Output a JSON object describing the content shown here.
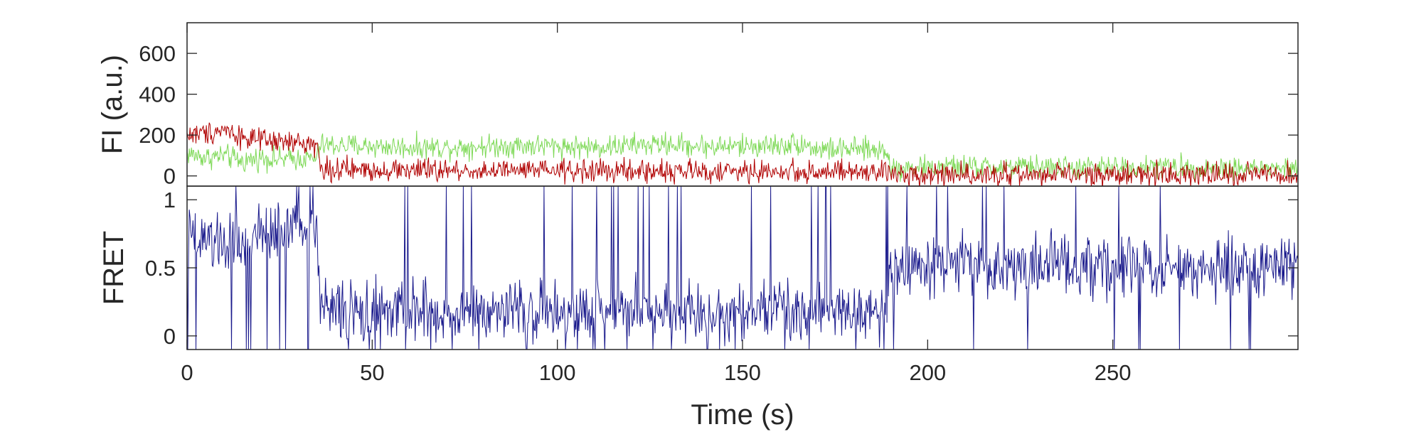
{
  "chart_data": [
    {
      "type": "line",
      "panel": "top",
      "ylabel": "FI (a.u.)",
      "xlabel": "",
      "xlim": [
        0,
        300
      ],
      "ylim": [
        -50,
        750
      ],
      "yticks": [
        0,
        200,
        400,
        600
      ],
      "grid": false,
      "series": [
        {
          "color": "#7ed957",
          "x": [
            0,
            5,
            10,
            15,
            20,
            25,
            30,
            35,
            36,
            40,
            50,
            60,
            70,
            80,
            90,
            100,
            110,
            120,
            130,
            140,
            150,
            160,
            166,
            170,
            180,
            189,
            190,
            200,
            210,
            220,
            230,
            240,
            250,
            260,
            270,
            280,
            290,
            300
          ],
          "values": [
            110,
            90,
            100,
            70,
            90,
            80,
            85,
            85,
            150,
            150,
            145,
            140,
            140,
            145,
            150,
            145,
            140,
            150,
            155,
            145,
            145,
            150,
            160,
            130,
            130,
            125,
            40,
            40,
            45,
            40,
            45,
            40,
            40,
            45,
            40,
            40,
            35,
            35
          ]
        },
        {
          "color": "#b00000",
          "x": [
            0,
            5,
            10,
            15,
            20,
            25,
            30,
            35,
            36,
            40,
            50,
            60,
            70,
            80,
            90,
            100,
            110,
            120,
            130,
            140,
            150,
            160,
            170,
            180,
            189,
            190,
            200,
            210,
            220,
            230,
            240,
            250,
            260,
            270,
            280,
            290,
            300
          ],
          "values": [
            200,
            210,
            230,
            190,
            170,
            165,
            160,
            160,
            35,
            30,
            30,
            30,
            25,
            25,
            25,
            25,
            25,
            20,
            25,
            20,
            20,
            20,
            20,
            15,
            15,
            10,
            10,
            10,
            5,
            5,
            5,
            5,
            10,
            10,
            5,
            5,
            0
          ]
        }
      ]
    },
    {
      "type": "line",
      "panel": "bottom",
      "ylabel": "FRET",
      "xlabel": "Time (s)",
      "xlim": [
        0,
        300
      ],
      "ylim": [
        -0.1,
        1.1
      ],
      "yticks": [
        0,
        0.5,
        1
      ],
      "xticks": [
        0,
        50,
        100,
        150,
        200,
        250
      ],
      "grid": false,
      "series": [
        {
          "color": "#1a1a8c",
          "x": [
            0,
            5,
            10,
            15,
            20,
            25,
            30,
            35,
            36,
            40,
            50,
            60,
            70,
            80,
            90,
            100,
            110,
            120,
            130,
            140,
            150,
            160,
            170,
            180,
            189,
            190,
            200,
            210,
            220,
            230,
            240,
            250,
            260,
            270,
            280,
            290,
            300
          ],
          "values": [
            0.7,
            0.7,
            0.68,
            0.65,
            0.75,
            0.78,
            0.8,
            0.8,
            0.2,
            0.2,
            0.15,
            0.18,
            0.15,
            0.2,
            0.2,
            0.15,
            0.18,
            0.2,
            0.2,
            0.18,
            0.2,
            0.18,
            0.2,
            0.2,
            0.15,
            0.5,
            0.5,
            0.55,
            0.5,
            0.5,
            0.52,
            0.5,
            0.48,
            0.5,
            0.5,
            0.5,
            0.5
          ]
        }
      ]
    }
  ]
}
